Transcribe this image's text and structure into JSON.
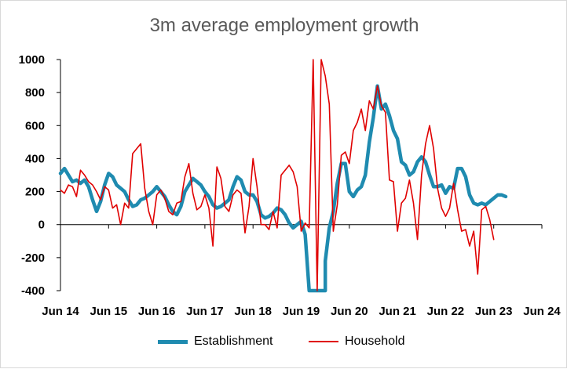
{
  "chart_data": {
    "type": "line",
    "title": "3m average employment growth",
    "xlabel": "",
    "ylabel": "",
    "ylim": [
      -400,
      1000
    ],
    "yticks": [
      1000,
      800,
      600,
      400,
      200,
      0,
      -200,
      -400
    ],
    "xticks": [
      "Jun 14",
      "Jun 15",
      "Jun 16",
      "Jun 17",
      "Jun 18",
      "Jun 19",
      "Jun 20",
      "Jun 21",
      "Jun 22",
      "Jun 23",
      "Jun 24"
    ],
    "grid": false,
    "legend": "bottom",
    "series": [
      {
        "name": "Establishment",
        "color": "#1f8bb0",
        "points": [
          [
            0,
            310
          ],
          [
            1,
            340
          ],
          [
            2,
            300
          ],
          [
            3,
            260
          ],
          [
            4,
            270
          ],
          [
            5,
            250
          ],
          [
            6,
            270
          ],
          [
            7,
            230
          ],
          [
            8,
            150
          ],
          [
            9,
            80
          ],
          [
            10,
            140
          ],
          [
            11,
            240
          ],
          [
            12,
            310
          ],
          [
            13,
            290
          ],
          [
            14,
            240
          ],
          [
            15,
            220
          ],
          [
            16,
            200
          ],
          [
            17,
            150
          ],
          [
            18,
            110
          ],
          [
            19,
            120
          ],
          [
            20,
            150
          ],
          [
            21,
            160
          ],
          [
            22,
            180
          ],
          [
            23,
            200
          ],
          [
            24,
            230
          ],
          [
            25,
            200
          ],
          [
            26,
            170
          ],
          [
            27,
            120
          ],
          [
            28,
            80
          ],
          [
            29,
            60
          ],
          [
            30,
            110
          ],
          [
            31,
            200
          ],
          [
            32,
            240
          ],
          [
            33,
            280
          ],
          [
            34,
            260
          ],
          [
            35,
            240
          ],
          [
            36,
            200
          ],
          [
            37,
            170
          ],
          [
            38,
            120
          ],
          [
            39,
            100
          ],
          [
            40,
            110
          ],
          [
            41,
            130
          ],
          [
            42,
            150
          ],
          [
            43,
            230
          ],
          [
            44,
            290
          ],
          [
            45,
            270
          ],
          [
            46,
            200
          ],
          [
            47,
            180
          ],
          [
            48,
            180
          ],
          [
            49,
            140
          ],
          [
            50,
            60
          ],
          [
            51,
            40
          ],
          [
            52,
            50
          ],
          [
            53,
            70
          ],
          [
            54,
            100
          ],
          [
            55,
            90
          ],
          [
            56,
            60
          ],
          [
            57,
            10
          ],
          [
            58,
            -20
          ],
          [
            59,
            0
          ],
          [
            60,
            20
          ],
          [
            61,
            -60
          ],
          [
            62,
            -400
          ],
          [
            66,
            -400
          ],
          [
            66,
            -220
          ],
          [
            67,
            -20
          ],
          [
            68,
            80
          ],
          [
            69,
            250
          ],
          [
            70,
            370
          ],
          [
            71,
            370
          ],
          [
            72,
            200
          ],
          [
            73,
            170
          ],
          [
            74,
            210
          ],
          [
            75,
            230
          ],
          [
            76,
            300
          ],
          [
            77,
            500
          ],
          [
            78,
            650
          ],
          [
            79,
            840
          ],
          [
            80,
            700
          ],
          [
            81,
            730
          ],
          [
            82,
            660
          ],
          [
            83,
            570
          ],
          [
            84,
            520
          ],
          [
            85,
            380
          ],
          [
            86,
            360
          ],
          [
            87,
            300
          ],
          [
            88,
            320
          ],
          [
            89,
            380
          ],
          [
            90,
            410
          ],
          [
            91,
            380
          ],
          [
            92,
            300
          ],
          [
            93,
            230
          ],
          [
            94,
            230
          ],
          [
            95,
            240
          ],
          [
            96,
            190
          ],
          [
            97,
            230
          ],
          [
            98,
            220
          ],
          [
            99,
            340
          ],
          [
            100,
            340
          ],
          [
            101,
            290
          ],
          [
            102,
            180
          ],
          [
            103,
            130
          ],
          [
            104,
            120
          ],
          [
            105,
            130
          ],
          [
            106,
            120
          ],
          [
            107,
            140
          ],
          [
            108,
            160
          ],
          [
            109,
            180
          ],
          [
            110,
            180
          ],
          [
            111,
            170
          ]
        ]
      },
      {
        "name": "Household",
        "color": "#e00000",
        "points": [
          [
            0,
            210
          ],
          [
            1,
            190
          ],
          [
            2,
            240
          ],
          [
            3,
            230
          ],
          [
            4,
            170
          ],
          [
            5,
            330
          ],
          [
            6,
            300
          ],
          [
            7,
            260
          ],
          [
            8,
            240
          ],
          [
            9,
            200
          ],
          [
            10,
            150
          ],
          [
            11,
            230
          ],
          [
            12,
            210
          ],
          [
            13,
            100
          ],
          [
            14,
            120
          ],
          [
            15,
            0
          ],
          [
            16,
            130
          ],
          [
            17,
            100
          ],
          [
            18,
            430
          ],
          [
            19,
            460
          ],
          [
            20,
            490
          ],
          [
            21,
            220
          ],
          [
            22,
            80
          ],
          [
            23,
            0
          ],
          [
            24,
            180
          ],
          [
            25,
            210
          ],
          [
            26,
            160
          ],
          [
            27,
            80
          ],
          [
            28,
            60
          ],
          [
            29,
            130
          ],
          [
            30,
            140
          ],
          [
            31,
            290
          ],
          [
            32,
            370
          ],
          [
            33,
            190
          ],
          [
            34,
            90
          ],
          [
            35,
            110
          ],
          [
            36,
            180
          ],
          [
            37,
            100
          ],
          [
            38,
            -130
          ],
          [
            39,
            350
          ],
          [
            40,
            280
          ],
          [
            41,
            110
          ],
          [
            42,
            80
          ],
          [
            43,
            180
          ],
          [
            44,
            210
          ],
          [
            45,
            190
          ],
          [
            46,
            -50
          ],
          [
            47,
            110
          ],
          [
            48,
            400
          ],
          [
            49,
            230
          ],
          [
            50,
            0
          ],
          [
            51,
            0
          ],
          [
            52,
            -30
          ],
          [
            53,
            80
          ],
          [
            54,
            -20
          ],
          [
            55,
            300
          ],
          [
            56,
            330
          ],
          [
            57,
            360
          ],
          [
            58,
            320
          ],
          [
            59,
            230
          ],
          [
            60,
            -40
          ],
          [
            61,
            10
          ],
          [
            62,
            -20
          ],
          [
            63,
            1000
          ],
          [
            64,
            -400
          ],
          [
            65,
            1000
          ],
          [
            66,
            900
          ],
          [
            67,
            730
          ],
          [
            68,
            -40
          ],
          [
            69,
            120
          ],
          [
            70,
            420
          ],
          [
            71,
            440
          ],
          [
            72,
            370
          ],
          [
            73,
            570
          ],
          [
            74,
            620
          ],
          [
            75,
            700
          ],
          [
            76,
            570
          ],
          [
            77,
            750
          ],
          [
            78,
            700
          ],
          [
            79,
            840
          ],
          [
            80,
            720
          ],
          [
            81,
            680
          ],
          [
            82,
            270
          ],
          [
            83,
            260
          ],
          [
            84,
            -40
          ],
          [
            85,
            130
          ],
          [
            86,
            160
          ],
          [
            87,
            270
          ],
          [
            88,
            130
          ],
          [
            89,
            -90
          ],
          [
            90,
            300
          ],
          [
            91,
            490
          ],
          [
            92,
            600
          ],
          [
            93,
            460
          ],
          [
            94,
            220
          ],
          [
            95,
            100
          ],
          [
            96,
            50
          ],
          [
            97,
            100
          ],
          [
            98,
            250
          ],
          [
            99,
            90
          ],
          [
            100,
            -40
          ],
          [
            101,
            -30
          ],
          [
            102,
            -130
          ],
          [
            103,
            -40
          ],
          [
            104,
            -300
          ],
          [
            105,
            90
          ],
          [
            106,
            110
          ],
          [
            107,
            30
          ],
          [
            108,
            -90
          ]
        ]
      }
    ]
  }
}
